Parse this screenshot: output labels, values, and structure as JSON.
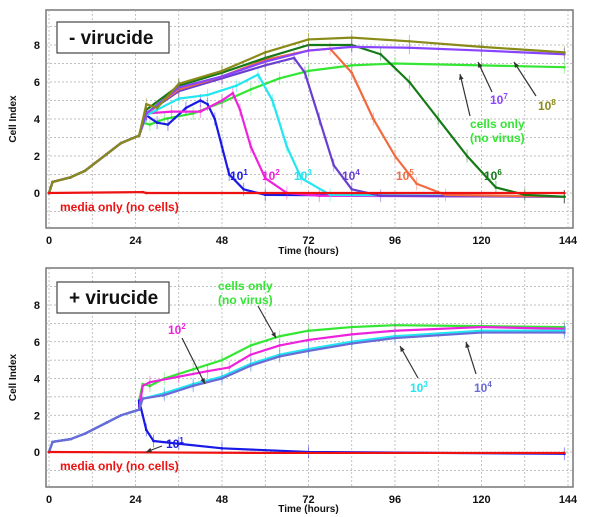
{
  "chart_data": [
    {
      "type": "line",
      "title": "- virucide",
      "xlabel": "Time (hours)",
      "ylabel": "Cell Index",
      "xlim": [
        0,
        144
      ],
      "ylim": [
        -1,
        9.5
      ],
      "xticks": [
        "0",
        "24",
        "48",
        "72",
        "96",
        "120",
        "144"
      ],
      "yticks": [
        "0",
        "2",
        "4",
        "6",
        "8"
      ],
      "grid": true,
      "shared_initial": [
        [
          0,
          0
        ],
        [
          1,
          0.6
        ],
        [
          6,
          0.85
        ],
        [
          10,
          1.2
        ],
        [
          16,
          2.1
        ],
        [
          20,
          2.7
        ],
        [
          25,
          3.1
        ]
      ],
      "series": [
        {
          "name": "cells only (no virus)",
          "line1": "cells only",
          "line2": "(no virus)",
          "color": "#33e633",
          "points": [
            [
              26,
              3.8
            ],
            [
              28,
              3.7
            ],
            [
              32,
              4.0
            ],
            [
              40,
              4.3
            ],
            [
              48,
              4.9
            ],
            [
              56,
              5.6
            ],
            [
              64,
              6.2
            ],
            [
              72,
              6.6
            ],
            [
              84,
              6.9
            ],
            [
              96,
              7.0
            ],
            [
              120,
              6.9
            ],
            [
              143,
              6.8
            ]
          ]
        },
        {
          "name": "10^1",
          "base": "10",
          "exp": "1",
          "color": "#1a1ae6",
          "points": [
            [
              27,
              4.2
            ],
            [
              30,
              3.8
            ],
            [
              33,
              3.7
            ],
            [
              38,
              4.6
            ],
            [
              42,
              5.0
            ],
            [
              44,
              4.8
            ],
            [
              46,
              4.0
            ],
            [
              48,
              2.5
            ],
            [
              50,
              1.0
            ],
            [
              54,
              0.2
            ],
            [
              60,
              -0.1
            ],
            [
              143,
              -0.2
            ]
          ]
        },
        {
          "name": "10^2",
          "base": "10",
          "exp": "2",
          "color": "#ee22dd",
          "points": [
            [
              27,
              4.3
            ],
            [
              34,
              4.4
            ],
            [
              42,
              4.4
            ],
            [
              48,
              5.0
            ],
            [
              51,
              5.4
            ],
            [
              53,
              4.5
            ],
            [
              56,
              2.5
            ],
            [
              60,
              0.8
            ],
            [
              66,
              0
            ],
            [
              75,
              -0.15
            ],
            [
              143,
              -0.2
            ]
          ]
        },
        {
          "name": "10^3",
          "base": "10",
          "exp": "3",
          "color": "#22e6f0",
          "points": [
            [
              27,
              4.2
            ],
            [
              36,
              5.1
            ],
            [
              44,
              5.3
            ],
            [
              52,
              5.8
            ],
            [
              58,
              6.4
            ],
            [
              62,
              5.0
            ],
            [
              66,
              2.5
            ],
            [
              70,
              0.8
            ],
            [
              78,
              -0.1
            ],
            [
              143,
              -0.2
            ]
          ]
        },
        {
          "name": "10^4",
          "base": "10",
          "exp": "4",
          "color": "#6a3fd0",
          "points": [
            [
              27,
              4.3
            ],
            [
              36,
              5.5
            ],
            [
              48,
              6.2
            ],
            [
              60,
              6.9
            ],
            [
              68,
              7.3
            ],
            [
              71,
              6.5
            ],
            [
              75,
              4.0
            ],
            [
              79,
              1.5
            ],
            [
              84,
              0.2
            ],
            [
              92,
              -0.15
            ],
            [
              143,
              -0.2
            ]
          ]
        },
        {
          "name": "10^5",
          "base": "10",
          "exp": "5",
          "color": "#f26a40",
          "points": [
            [
              27,
              4.3
            ],
            [
              36,
              5.6
            ],
            [
              48,
              6.3
            ],
            [
              60,
              7.2
            ],
            [
              72,
              7.7
            ],
            [
              78,
              7.8
            ],
            [
              84,
              6.5
            ],
            [
              90,
              4.0
            ],
            [
              96,
              2.0
            ],
            [
              102,
              0.5
            ],
            [
              110,
              -0.1
            ],
            [
              143,
              -0.2
            ]
          ]
        },
        {
          "name": "10^6",
          "base": "10",
          "exp": "6",
          "color": "#157a15",
          "points": [
            [
              27,
              4.5
            ],
            [
              36,
              5.8
            ],
            [
              48,
              6.5
            ],
            [
              60,
              7.3
            ],
            [
              72,
              8.0
            ],
            [
              84,
              8.0
            ],
            [
              92,
              7.5
            ],
            [
              100,
              6.0
            ],
            [
              108,
              4.0
            ],
            [
              116,
              2.0
            ],
            [
              124,
              0.3
            ],
            [
              132,
              -0.1
            ],
            [
              143,
              -0.2
            ]
          ]
        },
        {
          "name": "10^7",
          "base": "10",
          "exp": "7",
          "color": "#8844ff",
          "points": [
            [
              27,
              4.3
            ],
            [
              36,
              5.7
            ],
            [
              48,
              6.3
            ],
            [
              60,
              7.1
            ],
            [
              72,
              7.7
            ],
            [
              84,
              7.9
            ],
            [
              100,
              7.85
            ],
            [
              120,
              7.7
            ],
            [
              143,
              7.5
            ]
          ]
        },
        {
          "name": "10^8",
          "base": "10",
          "exp": "8",
          "color": "#8a8a18",
          "points": [
            [
              27,
              4.8
            ],
            [
              30,
              4.6
            ],
            [
              36,
              5.9
            ],
            [
              48,
              6.6
            ],
            [
              60,
              7.6
            ],
            [
              72,
              8.3
            ],
            [
              84,
              8.4
            ],
            [
              100,
              8.2
            ],
            [
              120,
              7.9
            ],
            [
              143,
              7.6
            ]
          ]
        },
        {
          "name": "media only (no cells)",
          "label": "media only (no cells)",
          "color": "#ee1111",
          "noinit": true,
          "points": [
            [
              0,
              0
            ],
            [
              26,
              0.05
            ],
            [
              27,
              0
            ],
            [
              143,
              0
            ]
          ]
        }
      ]
    },
    {
      "type": "line",
      "title": "+ virucide",
      "xlabel": "Time (hours)",
      "ylabel": "Cell Index",
      "xlim": [
        0,
        144
      ],
      "ylim": [
        -1,
        9.5
      ],
      "xticks": [
        "0",
        "24",
        "48",
        "72",
        "96",
        "120",
        "144"
      ],
      "yticks": [
        "0",
        "2",
        "4",
        "6",
        "8"
      ],
      "grid": true,
      "shared_initial": [
        [
          0,
          0
        ],
        [
          1,
          0.55
        ],
        [
          6,
          0.7
        ],
        [
          10,
          1.0
        ],
        [
          16,
          1.6
        ],
        [
          20,
          2.0
        ],
        [
          25,
          2.3
        ]
      ],
      "series": [
        {
          "name": "cells only (no virus)",
          "line1": "cells only",
          "line2": "(no virus)",
          "color": "#33e633",
          "points": [
            [
              25,
              2.8
            ],
            [
              26,
              3.7
            ],
            [
              28,
              3.6
            ],
            [
              32,
              4.0
            ],
            [
              40,
              4.5
            ],
            [
              48,
              5.0
            ],
            [
              56,
              5.8
            ],
            [
              64,
              6.3
            ],
            [
              72,
              6.6
            ],
            [
              84,
              6.8
            ],
            [
              96,
              6.9
            ],
            [
              120,
              6.85
            ],
            [
              143,
              6.8
            ]
          ]
        },
        {
          "name": "10^1",
          "base": "10",
          "exp": "1",
          "color": "#1a1ae6",
          "points": [
            [
              25,
              2.8
            ],
            [
              26,
              2.0
            ],
            [
              27,
              1.2
            ],
            [
              29,
              0.6
            ],
            [
              36,
              0.45
            ],
            [
              48,
              0.2
            ],
            [
              72,
              0
            ],
            [
              143,
              -0.1
            ]
          ]
        },
        {
          "name": "10^2",
          "base": "10",
          "exp": "2",
          "color": "#ee22dd",
          "points": [
            [
              26,
              3.6
            ],
            [
              28,
              3.8
            ],
            [
              36,
              4.1
            ],
            [
              44,
              4.4
            ],
            [
              50,
              4.6
            ],
            [
              56,
              5.3
            ],
            [
              64,
              5.8
            ],
            [
              72,
              6.1
            ],
            [
              84,
              6.4
            ],
            [
              96,
              6.6
            ],
            [
              120,
              6.8
            ],
            [
              143,
              6.7
            ]
          ]
        },
        {
          "name": "10^3",
          "base": "10",
          "exp": "3",
          "color": "#22e6f0",
          "points": [
            [
              26,
              2.9
            ],
            [
              32,
              3.2
            ],
            [
              40,
              3.7
            ],
            [
              48,
              4.1
            ],
            [
              56,
              4.8
            ],
            [
              64,
              5.3
            ],
            [
              72,
              5.6
            ],
            [
              84,
              6.0
            ],
            [
              96,
              6.3
            ],
            [
              120,
              6.6
            ],
            [
              143,
              6.6
            ]
          ]
        },
        {
          "name": "10^4",
          "base": "10",
          "exp": "4",
          "color": "#6a6ad8",
          "points": [
            [
              26,
              2.9
            ],
            [
              32,
              3.1
            ],
            [
              40,
              3.6
            ],
            [
              48,
              4.0
            ],
            [
              56,
              4.7
            ],
            [
              64,
              5.2
            ],
            [
              72,
              5.5
            ],
            [
              84,
              5.9
            ],
            [
              96,
              6.2
            ],
            [
              120,
              6.5
            ],
            [
              143,
              6.5
            ]
          ]
        },
        {
          "name": "media only (no cells)",
          "label": "media only (no cells)",
          "color": "#ee1111",
          "noinit": true,
          "points": [
            [
              0,
              0
            ],
            [
              60,
              -0.05
            ],
            [
              143,
              -0.05
            ]
          ]
        }
      ]
    }
  ]
}
